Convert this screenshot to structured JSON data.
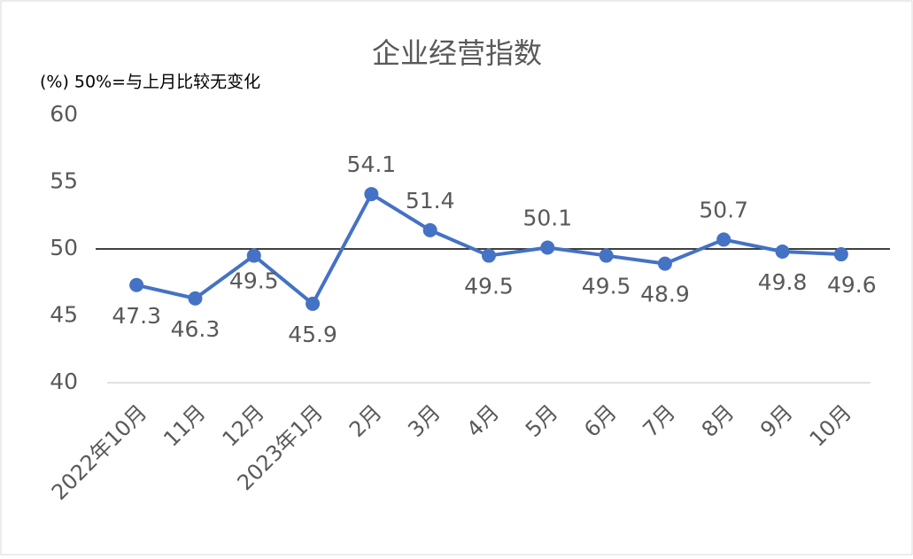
{
  "chart_data": {
    "type": "line",
    "title": "企业经营指数",
    "subtitle": "(%)   50%=与上月比较无变化",
    "categories": [
      "2022年10月",
      "11月",
      "12月",
      "2023年1月",
      "2月",
      "3月",
      "4月",
      "5月",
      "6月",
      "7月",
      "8月",
      "9月",
      "10月"
    ],
    "series": [
      {
        "name": "企业经营指数",
        "color": "#4472c4",
        "values": [
          47.3,
          46.3,
          49.5,
          45.9,
          54.1,
          51.4,
          49.5,
          50.1,
          49.5,
          48.9,
          50.7,
          49.8,
          49.6
        ]
      }
    ],
    "ylim": [
      40,
      60
    ],
    "yticks": [
      40,
      45,
      50,
      55,
      60
    ],
    "grid": false,
    "reference_line": 50
  }
}
